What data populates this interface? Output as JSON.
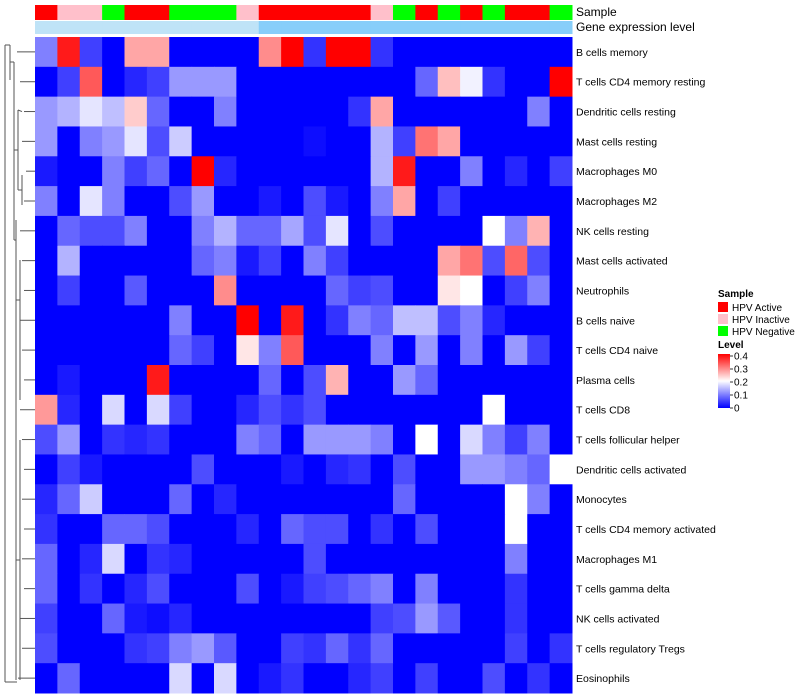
{
  "chart_data": {
    "type": "heatmap",
    "annotation_rows": [
      "Sample",
      "Gene expression level"
    ],
    "sample_groups": [
      "Active",
      "Inactive",
      "Inactive",
      "Negative",
      "Active",
      "Active",
      "Negative",
      "Negative",
      "Negative",
      "Inactive",
      "Active",
      "Active",
      "Active",
      "Active",
      "Active",
      "Inactive",
      "Negative",
      "Active",
      "Negative",
      "Active",
      "Negative",
      "Active",
      "Active",
      "Negative"
    ],
    "gene_expression_split": 10,
    "rows": [
      "B cells memory",
      "T cells CD4 memory resting",
      "Dendritic cells resting",
      "Mast cells resting",
      "Macrophages M0",
      "Macrophages M2",
      "NK cells resting",
      "Mast cells activated",
      "Neutrophils",
      "B cells naive",
      "T cells CD4 naive",
      "Plasma cells",
      "T cells CD8",
      "T cells follicular helper",
      "Dendritic cells activated",
      "Monocytes",
      "T cells CD4 memory activated",
      "Macrophages M1",
      "T cells gamma delta",
      "NK cells activated",
      "T cells regulatory  Tregs",
      "Eosinophils"
    ],
    "values": [
      [
        0.1,
        0.38,
        0.05,
        0.0,
        0.27,
        0.27,
        0.0,
        0.0,
        0.0,
        0.0,
        0.29,
        0.4,
        0.04,
        0.4,
        0.4,
        0.04,
        0.0,
        0.0,
        0.0,
        0.0,
        0.0,
        0.0,
        0.0,
        0.0
      ],
      [
        0.0,
        0.05,
        0.33,
        0.0,
        0.03,
        0.05,
        0.12,
        0.12,
        0.12,
        0.0,
        0.0,
        0.0,
        0.0,
        0.0,
        0.0,
        0.0,
        0.0,
        0.08,
        0.25,
        0.19,
        0.04,
        0.0,
        0.0,
        0.4
      ],
      [
        0.12,
        0.14,
        0.18,
        0.15,
        0.24,
        0.08,
        0.0,
        0.0,
        0.1,
        0.0,
        0.0,
        0.0,
        0.0,
        0.0,
        0.04,
        0.27,
        0.0,
        0.0,
        0.0,
        0.0,
        0.0,
        0.0,
        0.1,
        0.0
      ],
      [
        0.12,
        0.0,
        0.1,
        0.12,
        0.18,
        0.06,
        0.16,
        0.0,
        0.0,
        0.0,
        0.0,
        0.0,
        0.01,
        0.0,
        0.0,
        0.14,
        0.05,
        0.31,
        0.27,
        0.0,
        0.0,
        0.0,
        0.0,
        0.0
      ],
      [
        0.02,
        0.0,
        0.0,
        0.1,
        0.05,
        0.08,
        0.0,
        0.4,
        0.03,
        0.0,
        0.0,
        0.0,
        0.0,
        0.0,
        0.0,
        0.14,
        0.38,
        0.0,
        0.0,
        0.1,
        0.0,
        0.03,
        0.0,
        0.05
      ],
      [
        0.1,
        0.0,
        0.18,
        0.1,
        0.0,
        0.0,
        0.06,
        0.12,
        0.0,
        0.0,
        0.02,
        0.0,
        0.06,
        0.02,
        0.0,
        0.1,
        0.27,
        0.0,
        0.05,
        0.0,
        0.0,
        0.0,
        0.0,
        0.0
      ],
      [
        0.0,
        0.08,
        0.06,
        0.06,
        0.1,
        0.0,
        0.0,
        0.1,
        0.14,
        0.08,
        0.08,
        0.13,
        0.06,
        0.18,
        0.0,
        0.06,
        0.0,
        0.0,
        0.0,
        0.0,
        0.2,
        0.1,
        0.26,
        0.0
      ],
      [
        0.0,
        0.14,
        0.0,
        0.0,
        0.0,
        0.0,
        0.0,
        0.08,
        0.1,
        0.02,
        0.05,
        0.0,
        0.1,
        0.05,
        0.0,
        0.0,
        0.0,
        0.0,
        0.27,
        0.31,
        0.06,
        0.32,
        0.06,
        0.0
      ],
      [
        0.0,
        0.05,
        0.0,
        0.0,
        0.07,
        0.0,
        0.0,
        0.0,
        0.29,
        0.0,
        0.0,
        0.0,
        0.0,
        0.08,
        0.05,
        0.06,
        0.0,
        0.0,
        0.22,
        0.2,
        0.0,
        0.05,
        0.1,
        0.0
      ],
      [
        0.0,
        0.0,
        0.0,
        0.0,
        0.0,
        0.0,
        0.1,
        0.0,
        0.0,
        0.4,
        0.0,
        0.38,
        0.0,
        0.04,
        0.1,
        0.08,
        0.15,
        0.15,
        0.06,
        0.1,
        0.03,
        0.0,
        0.0,
        0.0
      ],
      [
        0.0,
        0.0,
        0.0,
        0.0,
        0.0,
        0.0,
        0.08,
        0.05,
        0.0,
        0.22,
        0.1,
        0.33,
        0.0,
        0.0,
        0.0,
        0.1,
        0.0,
        0.12,
        0.0,
        0.1,
        0.0,
        0.12,
        0.05,
        0.0
      ],
      [
        0.0,
        0.02,
        0.0,
        0.0,
        0.0,
        0.38,
        0.0,
        0.0,
        0.0,
        0.0,
        0.08,
        0.0,
        0.06,
        0.26,
        0.0,
        0.0,
        0.12,
        0.08,
        0.0,
        0.0,
        0.0,
        0.0,
        0.0,
        0.0
      ],
      [
        0.28,
        0.03,
        0.0,
        0.17,
        0.0,
        0.17,
        0.05,
        0.0,
        0.0,
        0.03,
        0.06,
        0.04,
        0.06,
        0.0,
        0.0,
        0.0,
        0.0,
        0.0,
        0.0,
        0.0,
        0.2,
        0.0,
        0.0,
        0.0
      ],
      [
        0.06,
        0.12,
        0.0,
        0.04,
        0.03,
        0.04,
        0.0,
        0.0,
        0.0,
        0.1,
        0.08,
        0.0,
        0.12,
        0.12,
        0.12,
        0.1,
        0.0,
        0.2,
        0.0,
        0.17,
        0.1,
        0.05,
        0.1,
        0.0
      ],
      [
        0.0,
        0.05,
        0.02,
        0.0,
        0.0,
        0.0,
        0.0,
        0.06,
        0.0,
        0.0,
        0.0,
        0.02,
        0.0,
        0.03,
        0.04,
        0.0,
        0.06,
        0.0,
        0.0,
        0.12,
        0.12,
        0.1,
        0.08,
        0.2
      ],
      [
        0.03,
        0.08,
        0.16,
        0.0,
        0.0,
        0.0,
        0.08,
        0.0,
        0.03,
        0.0,
        0.0,
        0.0,
        0.0,
        0.0,
        0.0,
        0.0,
        0.08,
        0.0,
        0.0,
        0.0,
        0.0,
        0.2,
        0.1,
        0.0
      ],
      [
        0.04,
        0.0,
        0.0,
        0.08,
        0.08,
        0.06,
        0.0,
        0.0,
        0.0,
        0.03,
        0.0,
        0.08,
        0.06,
        0.06,
        0.0,
        0.04,
        0.0,
        0.06,
        0.0,
        0.0,
        0.0,
        0.2,
        0.0,
        0.0
      ],
      [
        0.08,
        0.0,
        0.03,
        0.17,
        0.0,
        0.04,
        0.03,
        0.0,
        0.0,
        0.0,
        0.0,
        0.0,
        0.06,
        0.0,
        0.0,
        0.0,
        0.0,
        0.0,
        0.0,
        0.0,
        0.0,
        0.1,
        0.0,
        0.0
      ],
      [
        0.08,
        0.0,
        0.04,
        0.0,
        0.03,
        0.06,
        0.0,
        0.0,
        0.0,
        0.06,
        0.0,
        0.02,
        0.05,
        0.06,
        0.08,
        0.1,
        0.0,
        0.1,
        0.0,
        0.0,
        0.0,
        0.04,
        0.0,
        0.0
      ],
      [
        0.05,
        0.0,
        0.0,
        0.08,
        0.02,
        0.01,
        0.03,
        0.0,
        0.0,
        0.0,
        0.0,
        0.0,
        0.0,
        0.0,
        0.0,
        0.05,
        0.06,
        0.12,
        0.07,
        0.0,
        0.0,
        0.04,
        0.0,
        0.0
      ],
      [
        0.06,
        0.0,
        0.0,
        0.0,
        0.04,
        0.05,
        0.1,
        0.12,
        0.07,
        0.0,
        0.0,
        0.05,
        0.04,
        0.08,
        0.04,
        0.08,
        0.0,
        0.0,
        0.0,
        0.0,
        0.0,
        0.05,
        0.0,
        0.04
      ],
      [
        0.0,
        0.08,
        0.0,
        0.0,
        0.0,
        0.0,
        0.17,
        0.0,
        0.17,
        0.0,
        0.02,
        0.04,
        0.0,
        0.0,
        0.03,
        0.05,
        0.0,
        0.05,
        0.0,
        0.0,
        0.06,
        0.0,
        0.04,
        0.0
      ]
    ],
    "legend_sample": {
      "title": "Sample",
      "items": [
        {
          "label": "HPV Active",
          "color": "#ff0000"
        },
        {
          "label": "HPV Inactive",
          "color": "#ffc0cb"
        },
        {
          "label": "HPV Negative",
          "color": "#00ff00"
        }
      ]
    },
    "legend_level": {
      "title": "Level",
      "ticks": [
        "0.4",
        "0.3",
        "0.2",
        "0.1",
        "0"
      ],
      "range": [
        0,
        0.4
      ]
    },
    "colors": {
      "low": "#0000ff",
      "mid": "#ffffff",
      "high": "#ff0000",
      "gene_low": "#bfe3f7",
      "gene_high": "#87cefa"
    }
  }
}
